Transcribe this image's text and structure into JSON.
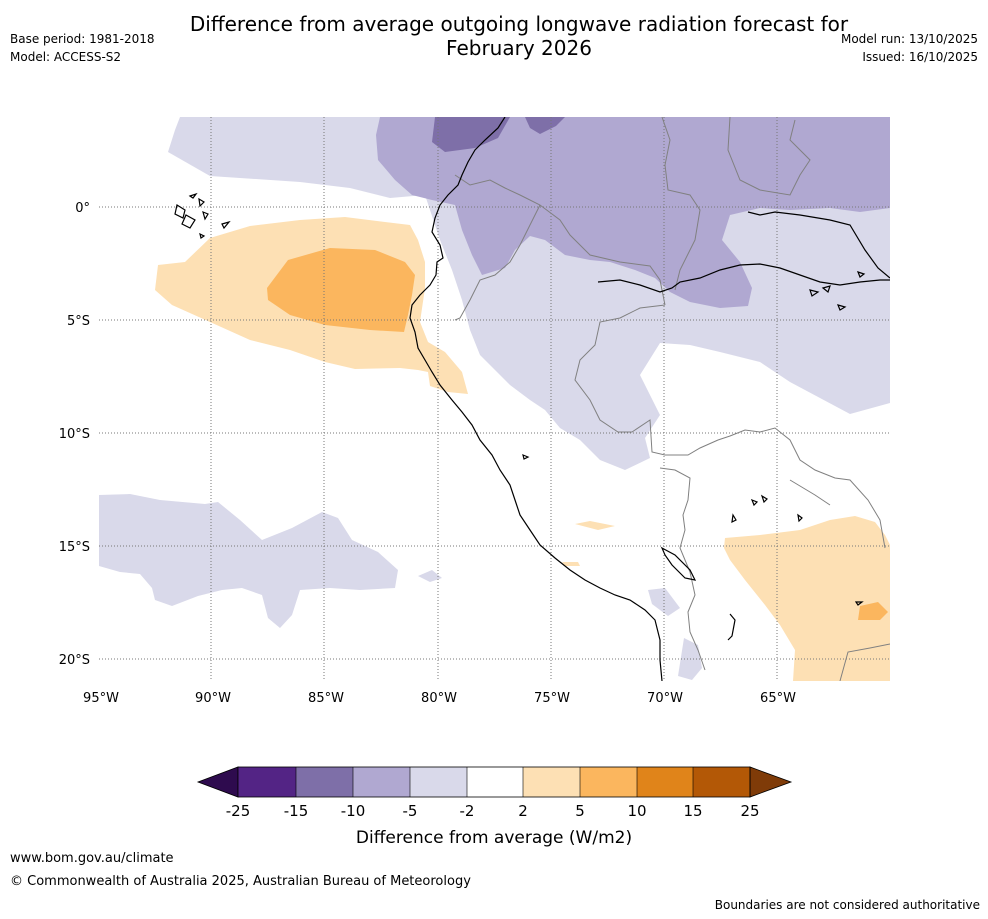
{
  "title_line1": "Difference from average outgoing longwave radiation forecast for",
  "title_line2": "February 2026",
  "meta": {
    "base_period": "Base period: 1981-2018",
    "model": "Model: ACCESS-S2",
    "model_run": "Model run: 13/10/2025",
    "issued": "Issued: 16/10/2025"
  },
  "map": {
    "lat_labels": [
      "0°",
      "5°S",
      "10°S",
      "15°S",
      "20°S"
    ],
    "lon_labels": [
      "95°W",
      "90°W",
      "85°W",
      "80°W",
      "75°W",
      "70°W",
      "65°W"
    ]
  },
  "colorbar": {
    "ticks": [
      "-25",
      "-15",
      "-10",
      "-5",
      "-2",
      "2",
      "5",
      "10",
      "15",
      "25"
    ],
    "colors": {
      "below_min": "#2e0b4e",
      "c1": "#532485",
      "c2": "#7e6fa8",
      "c3": "#b0a8d1",
      "c4": "#d9d9ea",
      "c5": "#ffffff",
      "c6": "#fde0b4",
      "c7": "#fbb65e",
      "c8": "#e0841a",
      "c9": "#b35806",
      "above_max": "#7f3b08"
    },
    "label": "Difference from average (W/m2)"
  },
  "footer": {
    "url": "www.bom.gov.au/climate",
    "copyright": "© Commonwealth of Australia 2025, Australian Bureau of Meteorology",
    "note": "Boundaries are not considered authoritative"
  }
}
